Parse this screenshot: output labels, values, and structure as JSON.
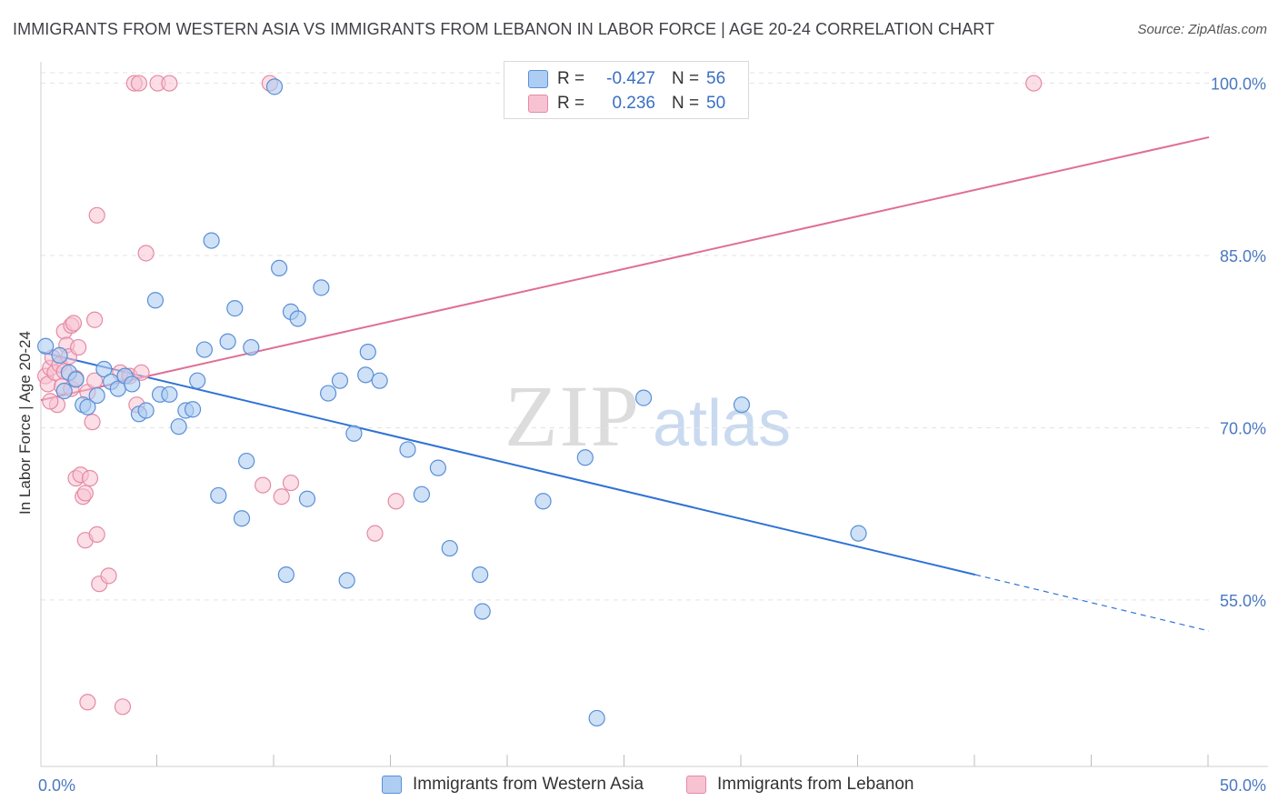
{
  "title": "IMMIGRANTS FROM WESTERN ASIA VS IMMIGRANTS FROM LEBANON IN LABOR FORCE | AGE 20-24 CORRELATION CHART",
  "source": "Source: ZipAtlas.com",
  "watermark": {
    "zip": "ZIP",
    "atlas": "atlas"
  },
  "legend": {
    "r_label": "R =",
    "n_label": "N =",
    "rows": [
      {
        "r_value": "-0.427",
        "n_value": "56"
      },
      {
        "r_value": "0.236",
        "n_value": "50"
      }
    ]
  },
  "bottom_legend": [
    "Immigrants from Western Asia",
    "Immigrants from Lebanon"
  ],
  "colors": {
    "blue_fill": "#aecdf2",
    "blue_stroke": "#5a8fd6",
    "blue_line": "#2f72d6",
    "pink_fill": "#f7c3d2",
    "pink_stroke": "#e58aa5",
    "pink_line": "#e06e95",
    "tick_label": "#4a78c2",
    "grid": "#e3e3e3"
  },
  "chart_data": {
    "type": "scatter",
    "title": "IMMIGRANTS FROM WESTERN ASIA VS IMMIGRANTS FROM LEBANON IN LABOR FORCE | AGE 20-24 CORRELATION CHART",
    "xlabel": "",
    "ylabel": "In Labor Force | Age 20-24",
    "xlim": [
      0,
      50
    ],
    "ylim": [
      40.5,
      102.5
    ],
    "x_tick_labels": [
      "0.0%",
      "50.0%"
    ],
    "x_tick_labels_at": [
      0,
      50
    ],
    "x_minor_ticks": [
      5,
      10,
      15,
      20,
      25,
      30,
      35,
      40,
      45,
      50
    ],
    "y_ticks": [
      100,
      85,
      70,
      55
    ],
    "y_tick_labels": [
      "100.0%",
      "85.0%",
      "70.0%",
      "55.0%"
    ],
    "grid": true,
    "series": [
      {
        "name": "Immigrants from Western Asia",
        "color": "blue",
        "R": -0.427,
        "N": 56,
        "trend": {
          "x0": 0,
          "y0": 76.6,
          "x1": 40,
          "y1": 57.2,
          "dash_to_x": 50,
          "dash_to_y": 52.3
        },
        "points": [
          [
            0.2,
            77.1
          ],
          [
            0.8,
            76.3
          ],
          [
            1.0,
            73.2
          ],
          [
            1.2,
            74.8
          ],
          [
            1.5,
            74.2
          ],
          [
            1.8,
            72.0
          ],
          [
            2.0,
            71.8
          ],
          [
            2.4,
            72.8
          ],
          [
            2.7,
            75.1
          ],
          [
            3.0,
            74.0
          ],
          [
            3.3,
            73.4
          ],
          [
            3.6,
            74.5
          ],
          [
            3.9,
            73.8
          ],
          [
            4.2,
            71.2
          ],
          [
            4.5,
            71.5
          ],
          [
            4.9,
            81.1
          ],
          [
            5.1,
            72.9
          ],
          [
            5.5,
            72.9
          ],
          [
            5.9,
            70.1
          ],
          [
            6.2,
            71.5
          ],
          [
            6.5,
            71.6
          ],
          [
            6.7,
            74.1
          ],
          [
            7.0,
            76.8
          ],
          [
            7.3,
            86.3
          ],
          [
            7.6,
            64.1
          ],
          [
            8.0,
            77.5
          ],
          [
            8.3,
            80.4
          ],
          [
            8.6,
            62.1
          ],
          [
            8.8,
            67.1
          ],
          [
            9.0,
            77.0
          ],
          [
            10.0,
            99.7
          ],
          [
            10.2,
            83.9
          ],
          [
            10.5,
            57.2
          ],
          [
            10.7,
            80.1
          ],
          [
            11.0,
            79.5
          ],
          [
            11.4,
            63.8
          ],
          [
            12.0,
            82.2
          ],
          [
            12.3,
            73.0
          ],
          [
            12.8,
            74.1
          ],
          [
            13.1,
            56.7
          ],
          [
            13.4,
            69.5
          ],
          [
            13.9,
            74.6
          ],
          [
            14.0,
            76.6
          ],
          [
            14.5,
            74.1
          ],
          [
            15.7,
            68.1
          ],
          [
            16.3,
            64.2
          ],
          [
            17.0,
            66.5
          ],
          [
            17.5,
            59.5
          ],
          [
            18.8,
            57.2
          ],
          [
            18.9,
            54.0
          ],
          [
            21.5,
            63.6
          ],
          [
            23.3,
            67.4
          ],
          [
            23.8,
            44.7
          ],
          [
            25.8,
            72.6
          ],
          [
            30.0,
            72.0
          ],
          [
            35.0,
            60.8
          ]
        ]
      },
      {
        "name": "Immigrants from Lebanon",
        "color": "pink",
        "R": 0.236,
        "N": 50,
        "trend": {
          "x0": 0,
          "y0": 72.4,
          "x1": 50,
          "y1": 95.3
        },
        "points": [
          [
            0.2,
            74.5
          ],
          [
            0.3,
            73.8
          ],
          [
            0.4,
            75.2
          ],
          [
            0.5,
            76.1
          ],
          [
            0.6,
            74.8
          ],
          [
            0.7,
            72.0
          ],
          [
            0.8,
            75.5
          ],
          [
            0.9,
            73.6
          ],
          [
            1.0,
            78.4
          ],
          [
            1.1,
            77.2
          ],
          [
            1.2,
            76.2
          ],
          [
            1.3,
            78.9
          ],
          [
            1.3,
            73.4
          ],
          [
            1.4,
            79.1
          ],
          [
            1.5,
            74.3
          ],
          [
            1.5,
            65.6
          ],
          [
            1.6,
            77.0
          ],
          [
            1.7,
            65.9
          ],
          [
            1.8,
            64.0
          ],
          [
            1.9,
            60.2
          ],
          [
            1.9,
            64.3
          ],
          [
            2.0,
            73.1
          ],
          [
            2.1,
            65.6
          ],
          [
            2.0,
            46.1
          ],
          [
            2.2,
            70.5
          ],
          [
            2.3,
            74.1
          ],
          [
            2.3,
            79.4
          ],
          [
            2.4,
            88.5
          ],
          [
            2.4,
            60.7
          ],
          [
            2.5,
            56.4
          ],
          [
            2.9,
            57.1
          ],
          [
            3.4,
            74.8
          ],
          [
            3.5,
            45.7
          ],
          [
            3.8,
            74.5
          ],
          [
            4.0,
            100.0
          ],
          [
            4.2,
            100.0
          ],
          [
            4.1,
            72.0
          ],
          [
            4.3,
            74.8
          ],
          [
            4.5,
            85.2
          ],
          [
            5.0,
            100.0
          ],
          [
            5.5,
            100.0
          ],
          [
            9.5,
            65.0
          ],
          [
            9.8,
            100.0
          ],
          [
            10.3,
            64.0
          ],
          [
            10.7,
            65.2
          ],
          [
            15.2,
            63.6
          ],
          [
            14.3,
            60.8
          ],
          [
            42.5,
            100.0
          ],
          [
            1.0,
            74.9
          ],
          [
            0.4,
            72.3
          ]
        ]
      }
    ]
  }
}
